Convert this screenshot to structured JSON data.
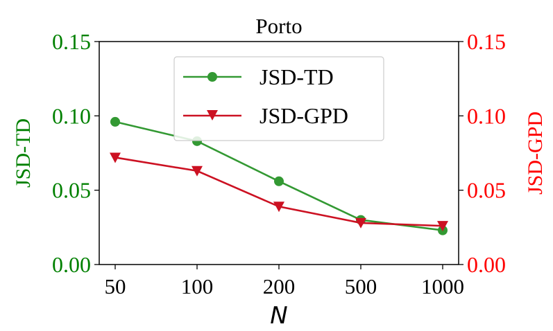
{
  "chart_data": {
    "type": "line",
    "title": "Porto",
    "xlabel": "N",
    "categories": [
      "50",
      "100",
      "200",
      "500",
      "1000"
    ],
    "y_left": {
      "label": "JSD-TD",
      "lim": [
        0,
        0.15
      ],
      "ticks": [
        "0.00",
        "0.05",
        "0.10",
        "0.15"
      ],
      "tick_values": [
        0,
        0.05,
        0.1,
        0.15
      ],
      "color": "#008000"
    },
    "y_right": {
      "label": "JSD-GPD",
      "lim": [
        0,
        0.15
      ],
      "ticks": [
        "0.00",
        "0.05",
        "0.10",
        "0.15"
      ],
      "tick_values": [
        0,
        0.05,
        0.1,
        0.15
      ],
      "color": "#ff0000"
    },
    "series": [
      {
        "name": "JSD-TD",
        "axis": "left",
        "marker": "circle",
        "color": "#339933",
        "values": [
          0.096,
          0.083,
          0.056,
          0.03,
          0.023
        ]
      },
      {
        "name": "JSD-GPD",
        "axis": "right",
        "marker": "triangle-down",
        "color": "#cc1122",
        "values": [
          0.072,
          0.063,
          0.039,
          0.028,
          0.026
        ]
      }
    ],
    "legend": {
      "position": "upper-center",
      "entries": [
        "JSD-TD",
        "JSD-GPD"
      ]
    },
    "grid": false
  }
}
